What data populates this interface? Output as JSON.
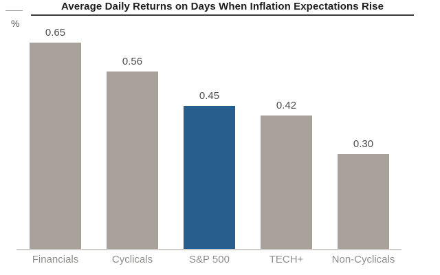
{
  "chart_data": {
    "type": "bar",
    "title": "Average Daily Returns on Days When Inflation Expectations Rise",
    "ylabel": "%",
    "xlabel": "",
    "categories": [
      "Financials",
      "Cyclicals",
      "S&P 500",
      "TECH+",
      "Non-Cyclicals"
    ],
    "values": [
      0.65,
      0.56,
      0.45,
      0.42,
      0.3
    ],
    "value_labels": [
      "0.65",
      "0.56",
      "0.45",
      "0.42",
      "0.30"
    ],
    "highlighted_category": "S&P 500",
    "ylim": [
      0,
      0.72
    ],
    "grid": false,
    "legend_position": "none",
    "colors": {
      "bar_default": "#a9a29b",
      "bar_highlight": "#275e8e",
      "baseline": "#cfcdca",
      "title_text": "#1c1c1c",
      "title_underline": "#3a3a3a",
      "value_label": "#4b4b4b",
      "category_label": "#8e8d8b",
      "unit_label": "#565656"
    }
  }
}
